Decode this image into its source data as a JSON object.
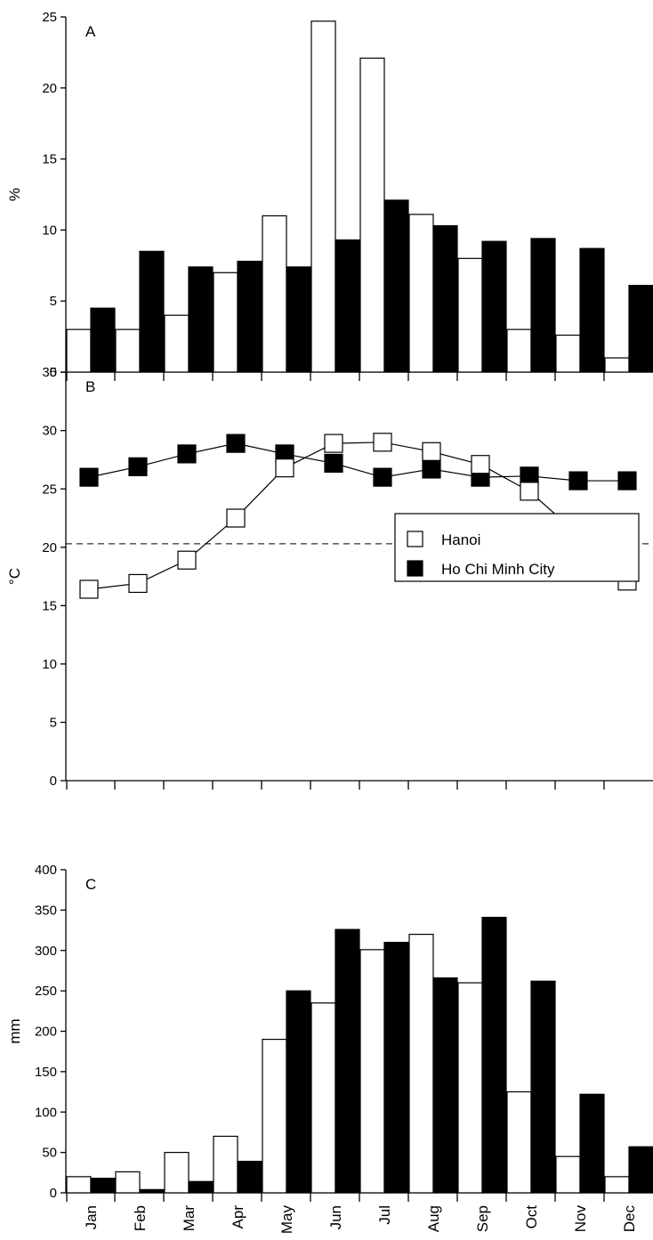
{
  "chart_data": [
    {
      "panel_label": "A",
      "type": "bar",
      "ylabel": "%",
      "ylim": [
        0,
        25
      ],
      "yticks": [
        0,
        5,
        10,
        15,
        20,
        25
      ],
      "categories": [
        "Jan",
        "Feb",
        "Mar",
        "Apr",
        "May",
        "Jun",
        "Jul",
        "Aug",
        "Sep",
        "Oct",
        "Nov",
        "Dec"
      ],
      "series": [
        {
          "name": "Hanoi",
          "color": "#ffffff",
          "values": [
            3.0,
            3.0,
            4.0,
            7.0,
            11.0,
            24.7,
            22.1,
            11.1,
            8.0,
            3.0,
            2.6,
            1.0
          ]
        },
        {
          "name": "Ho Chi Minh City",
          "color": "#000000",
          "values": [
            4.5,
            8.5,
            7.4,
            7.8,
            7.4,
            9.3,
            12.1,
            10.3,
            9.2,
            9.4,
            8.7,
            6.1
          ]
        }
      ]
    },
    {
      "panel_label": "B",
      "type": "line",
      "ylabel": "°C",
      "ylim": [
        0,
        35
      ],
      "yticks": [
        0,
        5,
        10,
        15,
        20,
        25,
        30,
        35
      ],
      "reference_line": 20.3,
      "categories": [
        "Jan",
        "Feb",
        "Mar",
        "Apr",
        "May",
        "Jun",
        "Jul",
        "Aug",
        "Sep",
        "Oct",
        "Nov",
        "Dec"
      ],
      "series": [
        {
          "name": "Hanoi",
          "color": "#ffffff",
          "values": [
            16.4,
            16.9,
            18.9,
            22.5,
            26.8,
            28.9,
            29.0,
            28.2,
            27.1,
            24.8,
            21.1,
            17.1
          ]
        },
        {
          "name": "Ho Chi Minh City",
          "color": "#000000",
          "values": [
            26.0,
            26.9,
            28.0,
            28.9,
            28.0,
            27.2,
            26.0,
            26.7,
            26.0,
            26.1,
            25.7,
            25.7
          ]
        }
      ],
      "legend": {
        "position": "middle-right",
        "entries": [
          "Hanoi",
          "Ho Chi Minh City"
        ]
      }
    },
    {
      "panel_label": "C",
      "type": "bar",
      "ylabel": "mm",
      "ylim": [
        0,
        400
      ],
      "yticks": [
        0,
        50,
        100,
        150,
        200,
        250,
        300,
        350,
        400
      ],
      "categories": [
        "Jan",
        "Feb",
        "Mar",
        "Apr",
        "May",
        "Jun",
        "Jul",
        "Aug",
        "Sep",
        "Oct",
        "Nov",
        "Dec"
      ],
      "series": [
        {
          "name": "Hanoi",
          "color": "#ffffff",
          "values": [
            20,
            26,
            50,
            70,
            190,
            235,
            301,
            320,
            260,
            125,
            45,
            20
          ]
        },
        {
          "name": "Ho Chi Minh City",
          "color": "#000000",
          "values": [
            18,
            4,
            14,
            39,
            250,
            326,
            310,
            266,
            341,
            262,
            122,
            57
          ]
        }
      ]
    }
  ]
}
